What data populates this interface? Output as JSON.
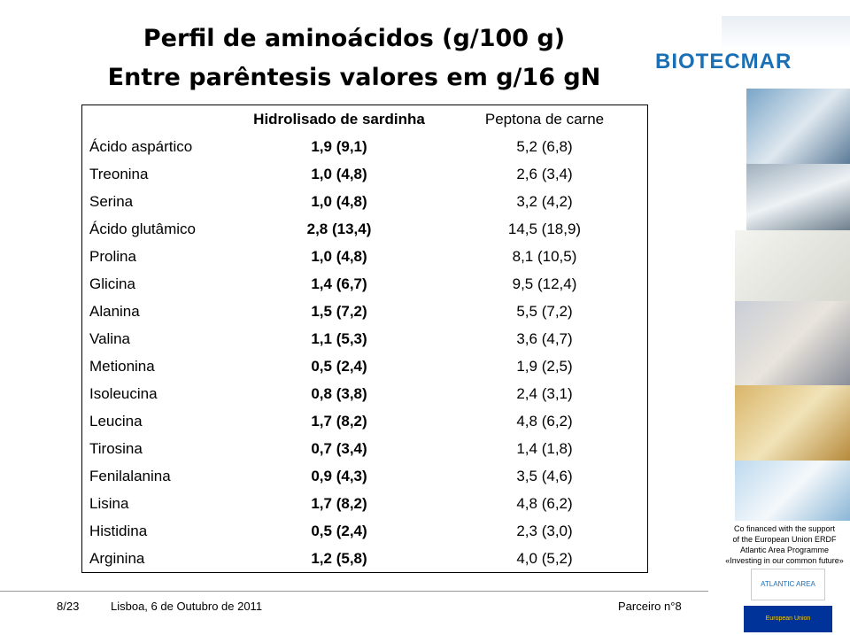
{
  "title": [
    "Perfil de aminoácidos (g/100 g)",
    "Entre parêntesis valores em g/16 gN"
  ],
  "table": {
    "header": [
      "",
      "Hidrolisado de sardinha",
      "Peptona de carne"
    ],
    "rows": [
      [
        "Ácido aspártico",
        "1,9 (9,1)",
        "5,2 (6,8)"
      ],
      [
        "Treonina",
        "1,0 (4,8)",
        "2,6 (3,4)"
      ],
      [
        "Serina",
        "1,0 (4,8)",
        "3,2 (4,2)"
      ],
      [
        "Ácido glutâmico",
        "2,8 (13,4)",
        "14,5 (18,9)"
      ],
      [
        "Prolina",
        "1,0 (4,8)",
        "8,1 (10,5)"
      ],
      [
        "Glicina",
        "1,4 (6,7)",
        "9,5 (12,4)"
      ],
      [
        "Alanina",
        "1,5 (7,2)",
        "5,5 (7,2)"
      ],
      [
        "Valina",
        "1,1 (5,3)",
        "3,6 (4,7)"
      ],
      [
        "Metionina",
        "0,5 (2,4)",
        "1,9 (2,5)"
      ],
      [
        "Isoleucina",
        "0,8 (3,8)",
        "2,4 (3,1)"
      ],
      [
        "Leucina",
        "1,7 (8,2)",
        "4,8 (6,2)"
      ],
      [
        "Tirosina",
        "0,7 (3,4)",
        "1,4 (1,8)"
      ],
      [
        "Fenilalanina",
        "0,9 (4,3)",
        "3,5 (4,6)"
      ],
      [
        "Lisina",
        "1,7 (8,2)",
        "4,8 (6,2)"
      ],
      [
        "Histidina",
        "0,5 (2,4)",
        "2,3 (3,0)"
      ],
      [
        "Arginina",
        "1,2 (5,8)",
        "4,0 (5,2)"
      ]
    ]
  },
  "sidebar": {
    "logo": "BIOTECMAR",
    "funding": [
      "Co   financed with the support",
      "of the European Union ERDF",
      "Atlantic Area Programme",
      "«Investing in our common future»"
    ],
    "logos": [
      "ATLANTIC AREA",
      "European Union"
    ]
  },
  "footer": {
    "page": "8/23",
    "place": "Lisboa, 6 de Outubro de 2011",
    "partner": "Parceiro  n°8"
  }
}
